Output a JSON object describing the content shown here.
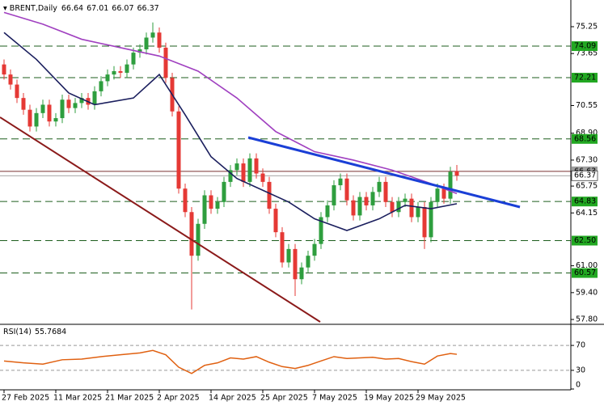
{
  "chart_data": [
    {
      "type": "candlestick",
      "title": "BRENT,Daily",
      "open": [
        73.0,
        72.4,
        71.8,
        71.0,
        70.3,
        69.3,
        70.1,
        70.6,
        69.6,
        69.8,
        70.9,
        70.4,
        70.7,
        71.0,
        70.6,
        71.4,
        72.0,
        72.4,
        72.6,
        72.5,
        73.0,
        73.7,
        73.9,
        74.6,
        74.9,
        74.0,
        72.2,
        70.2,
        65.6,
        64.2,
        61.6,
        63.5,
        65.2,
        64.4,
        64.8,
        66.0,
        66.7,
        67.1,
        66.0,
        67.4,
        66.5,
        66.0,
        64.4,
        63.0,
        61.2,
        62.0,
        60.2,
        60.9,
        61.6,
        62.3,
        63.9,
        64.6,
        65.8,
        66.2,
        64.9,
        64.0,
        65.1,
        64.6,
        65.4,
        66.0,
        64.8,
        64.2,
        64.8,
        65.0,
        63.9,
        64.5,
        62.7,
        64.8,
        65.6,
        65.0,
        66.64
      ],
      "high": [
        73.3,
        72.7,
        72.1,
        71.3,
        70.6,
        70.4,
        70.9,
        70.9,
        70.1,
        71.2,
        71.2,
        71.0,
        71.3,
        71.3,
        71.7,
        72.3,
        72.7,
        72.9,
        72.9,
        73.3,
        74.0,
        74.2,
        74.9,
        75.5,
        75.2,
        74.3,
        72.5,
        70.5,
        65.9,
        64.5,
        63.8,
        65.5,
        65.5,
        65.1,
        66.3,
        67.0,
        67.4,
        67.4,
        67.7,
        67.7,
        66.8,
        66.3,
        64.7,
        63.3,
        62.3,
        62.3,
        61.2,
        61.9,
        62.6,
        64.2,
        64.9,
        66.1,
        66.5,
        66.5,
        65.2,
        65.4,
        65.4,
        65.7,
        66.3,
        66.3,
        65.1,
        65.1,
        65.3,
        65.3,
        64.8,
        64.8,
        65.1,
        65.9,
        65.9,
        66.9,
        67.01
      ],
      "low": [
        72.1,
        71.5,
        70.7,
        70.0,
        69.0,
        69.0,
        69.8,
        69.3,
        69.3,
        69.5,
        70.1,
        70.1,
        70.4,
        70.3,
        70.3,
        71.1,
        71.7,
        72.1,
        72.2,
        72.2,
        72.7,
        73.4,
        73.6,
        74.3,
        73.7,
        71.9,
        69.9,
        65.3,
        63.9,
        58.4,
        61.3,
        63.2,
        64.1,
        64.1,
        64.5,
        65.7,
        66.4,
        65.7,
        65.7,
        66.2,
        65.7,
        64.1,
        62.7,
        60.9,
        60.9,
        59.2,
        59.9,
        60.6,
        61.3,
        62.0,
        63.6,
        64.3,
        65.5,
        64.6,
        63.7,
        63.7,
        64.3,
        64.3,
        65.1,
        64.5,
        63.9,
        63.9,
        64.5,
        63.6,
        63.6,
        62.0,
        62.4,
        64.5,
        64.7,
        64.7,
        66.07
      ],
      "close": [
        72.4,
        71.8,
        71.0,
        70.3,
        69.3,
        70.1,
        70.6,
        69.6,
        69.8,
        70.9,
        70.4,
        70.7,
        71.0,
        70.6,
        71.4,
        72.0,
        72.4,
        72.6,
        72.5,
        73.0,
        73.7,
        73.9,
        74.6,
        74.9,
        74.0,
        72.2,
        70.2,
        65.6,
        64.2,
        61.6,
        63.5,
        65.2,
        64.4,
        64.8,
        66.0,
        66.7,
        67.1,
        66.0,
        67.4,
        66.5,
        66.0,
        64.4,
        63.0,
        61.2,
        62.0,
        60.2,
        60.9,
        61.6,
        62.3,
        63.9,
        64.6,
        65.8,
        66.2,
        64.9,
        64.0,
        65.1,
        64.6,
        65.4,
        66.0,
        64.8,
        64.2,
        64.8,
        65.0,
        63.9,
        64.5,
        62.7,
        64.8,
        65.6,
        65.0,
        66.6,
        66.37
      ],
      "up_color": "#2e9e3e",
      "down_color": "#e53935",
      "lines": [
        {
          "color": "#1b1f5e",
          "x": [
            0,
            5,
            10,
            14,
            20,
            24,
            28,
            32,
            36,
            40,
            44,
            48,
            53,
            58,
            62,
            66,
            70
          ],
          "values": [
            74.9,
            73.3,
            71.3,
            70.6,
            71.0,
            72.4,
            70.0,
            67.5,
            66.2,
            65.5,
            64.8,
            63.8,
            63.1,
            63.8,
            64.6,
            64.4,
            64.7
          ]
        },
        {
          "color": "#a040c0",
          "x": [
            0,
            6,
            12,
            18,
            24,
            30,
            36,
            42,
            48,
            54,
            60,
            66,
            70
          ],
          "values": [
            76.1,
            75.4,
            74.5,
            74.0,
            73.5,
            72.6,
            71.0,
            69.0,
            67.8,
            67.3,
            66.7,
            65.9,
            65.3
          ]
        }
      ],
      "levels": [
        {
          "value": 74.09,
          "color": "#22a822"
        },
        {
          "value": 72.21,
          "color": "#22a822"
        },
        {
          "value": 68.56,
          "color": "#22a822"
        },
        {
          "value": 66.63,
          "color": "#a0a0a0"
        },
        {
          "value": 64.83,
          "color": "#22a822"
        },
        {
          "value": 62.5,
          "label": "62.50",
          "color": "#22a822"
        },
        {
          "value": 60.57,
          "color": "#22a822"
        }
      ],
      "xlim": [
        -0.625,
        87.625
      ],
      "ylim": [
        57.56,
        76.84
      ],
      "yticks": [
        75.25,
        73.65,
        {
          "value": 70.55,
          "label": "70.55"
        },
        {
          "value": 68.9,
          "label": "68.90"
        },
        {
          "value": 67.3,
          "label": "67.30"
        },
        65.75,
        64.15,
        {
          "value": 61.0,
          "label": "61.00"
        },
        {
          "value": 59.4,
          "label": "59.40"
        },
        {
          "value": 57.8,
          "label": "57.80"
        }
      ],
      "xticks": [
        {
          "value": 0,
          "label": "27 Feb 2025"
        },
        {
          "value": 8,
          "label": "11 Mar 2025"
        },
        {
          "value": 16,
          "label": "21 Mar 2025"
        },
        {
          "value": 24,
          "label": "2 Apr 2025"
        },
        {
          "value": 32,
          "label": "14 Apr 2025"
        },
        {
          "value": 40,
          "label": "25 Apr 2025"
        },
        {
          "value": 48,
          "label": "7 May 2025"
        },
        {
          "value": 56,
          "label": "19 May 2025"
        },
        {
          "value": 64,
          "label": "29 May 2025"
        }
      ]
    },
    {
      "type": "line",
      "title": "RSI(14)",
      "color": "#e06010",
      "x": [
        0,
        3,
        6,
        9,
        12,
        15,
        18,
        21,
        23,
        25,
        27,
        29,
        31,
        33,
        35,
        37,
        39,
        41,
        43,
        45,
        47,
        49,
        51,
        53,
        55,
        57,
        59,
        61,
        63,
        65,
        67,
        69,
        70
      ],
      "values": [
        45,
        42,
        40,
        47,
        48,
        52,
        55,
        58,
        62,
        55,
        35,
        25,
        38,
        42,
        50,
        48,
        52,
        43,
        36,
        33,
        38,
        45,
        52,
        49,
        50,
        51,
        48,
        49,
        44,
        40,
        53,
        57,
        55.7684
      ],
      "ylim": [
        0,
        100
      ],
      "yticks": [
        70,
        30,
        0
      ],
      "levels": [
        70,
        30
      ]
    }
  ]
}
